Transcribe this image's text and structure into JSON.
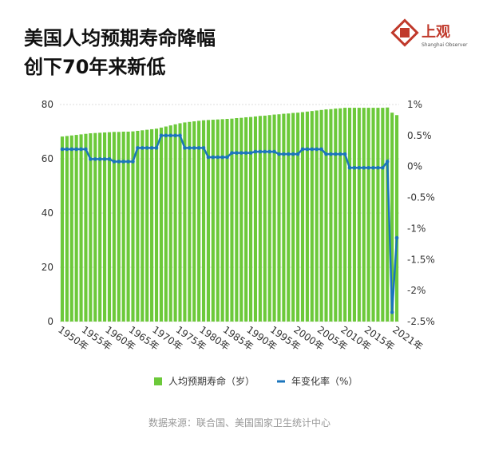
{
  "logo": {
    "name": "上观",
    "subtitle": "Shanghai Observer"
  },
  "source": "数据来源：联合国、美国国家卫生统计中心",
  "chart_data": {
    "type": "bar_line",
    "title": [
      "美国人均预期寿命降幅",
      "创下70年来新低"
    ],
    "categories": [
      "1950年",
      null,
      null,
      null,
      null,
      "1955年",
      null,
      null,
      null,
      null,
      "1960年",
      null,
      null,
      null,
      null,
      "1965年",
      null,
      null,
      null,
      null,
      "1970年",
      null,
      null,
      null,
      null,
      "1975年",
      null,
      null,
      null,
      null,
      "1980年",
      null,
      null,
      null,
      null,
      "1985年",
      null,
      null,
      null,
      null,
      "1990年",
      null,
      null,
      null,
      null,
      "1995年",
      null,
      null,
      null,
      null,
      "2000年",
      null,
      null,
      null,
      null,
      "2005年",
      null,
      null,
      null,
      null,
      "2010年",
      null,
      null,
      null,
      null,
      "2015年",
      null,
      null,
      null,
      null,
      null,
      "2021年"
    ],
    "series": [
      {
        "name": "人均预期寿命（岁）",
        "color": "#6cc93a",
        "type": "bar",
        "values": [
          68.2,
          68.4,
          68.6,
          68.8,
          69.0,
          69.2,
          69.4,
          69.5,
          69.6,
          69.7,
          69.8,
          69.9,
          69.9,
          70.0,
          70.0,
          70.1,
          70.3,
          70.5,
          70.7,
          70.9,
          71.1,
          71.5,
          71.9,
          72.3,
          72.7,
          73.1,
          73.4,
          73.6,
          73.8,
          74.0,
          74.2,
          74.3,
          74.4,
          74.5,
          74.6,
          74.7,
          74.8,
          75.0,
          75.1,
          75.3,
          75.4,
          75.6,
          75.8,
          75.9,
          76.1,
          76.3,
          76.4,
          76.6,
          76.7,
          76.9,
          77.0,
          77.2,
          77.4,
          77.6,
          77.8,
          78.0,
          78.2,
          78.3,
          78.5,
          78.6,
          78.8,
          78.8,
          78.8,
          78.8,
          78.8,
          78.8,
          78.8,
          78.8,
          78.8,
          78.9,
          77.0,
          76.1
        ]
      },
      {
        "name": "年变化率（%）",
        "color": "#1b75bc",
        "type": "line",
        "axis": "y2",
        "values": [
          0.28,
          0.28,
          0.28,
          0.28,
          0.28,
          0.28,
          0.12,
          0.12,
          0.12,
          0.12,
          0.12,
          0.08,
          0.08,
          0.08,
          0.08,
          0.08,
          0.3,
          0.3,
          0.3,
          0.3,
          0.3,
          0.5,
          0.5,
          0.5,
          0.5,
          0.5,
          0.3,
          0.3,
          0.3,
          0.3,
          0.3,
          0.15,
          0.15,
          0.15,
          0.15,
          0.15,
          0.22,
          0.22,
          0.22,
          0.22,
          0.22,
          0.24,
          0.24,
          0.24,
          0.24,
          0.24,
          0.2,
          0.2,
          0.2,
          0.2,
          0.2,
          0.28,
          0.28,
          0.28,
          0.28,
          0.28,
          0.2,
          0.2,
          0.2,
          0.2,
          0.2,
          -0.02,
          -0.02,
          -0.02,
          -0.02,
          -0.02,
          -0.02,
          -0.02,
          -0.02,
          0.08,
          -2.35,
          -1.15
        ]
      }
    ],
    "ylim": [
      0,
      80
    ],
    "yticks": [
      0,
      20,
      40,
      60,
      80
    ],
    "y2lim": [
      -2.5,
      1
    ],
    "y2ticks": [
      {
        "value": 1,
        "label": "1%"
      },
      {
        "value": 0.5,
        "label": "0.5%"
      },
      {
        "value": 0,
        "label": "0%"
      },
      {
        "value": -0.5,
        "label": "-0.5%"
      },
      {
        "value": -1,
        "label": "-1%"
      },
      {
        "value": -1.5,
        "label": "-1.5%"
      },
      {
        "value": -2,
        "label": "-2%"
      },
      {
        "value": -2.5,
        "label": "-2.5%"
      }
    ],
    "grid": true,
    "legend": "bottom"
  }
}
